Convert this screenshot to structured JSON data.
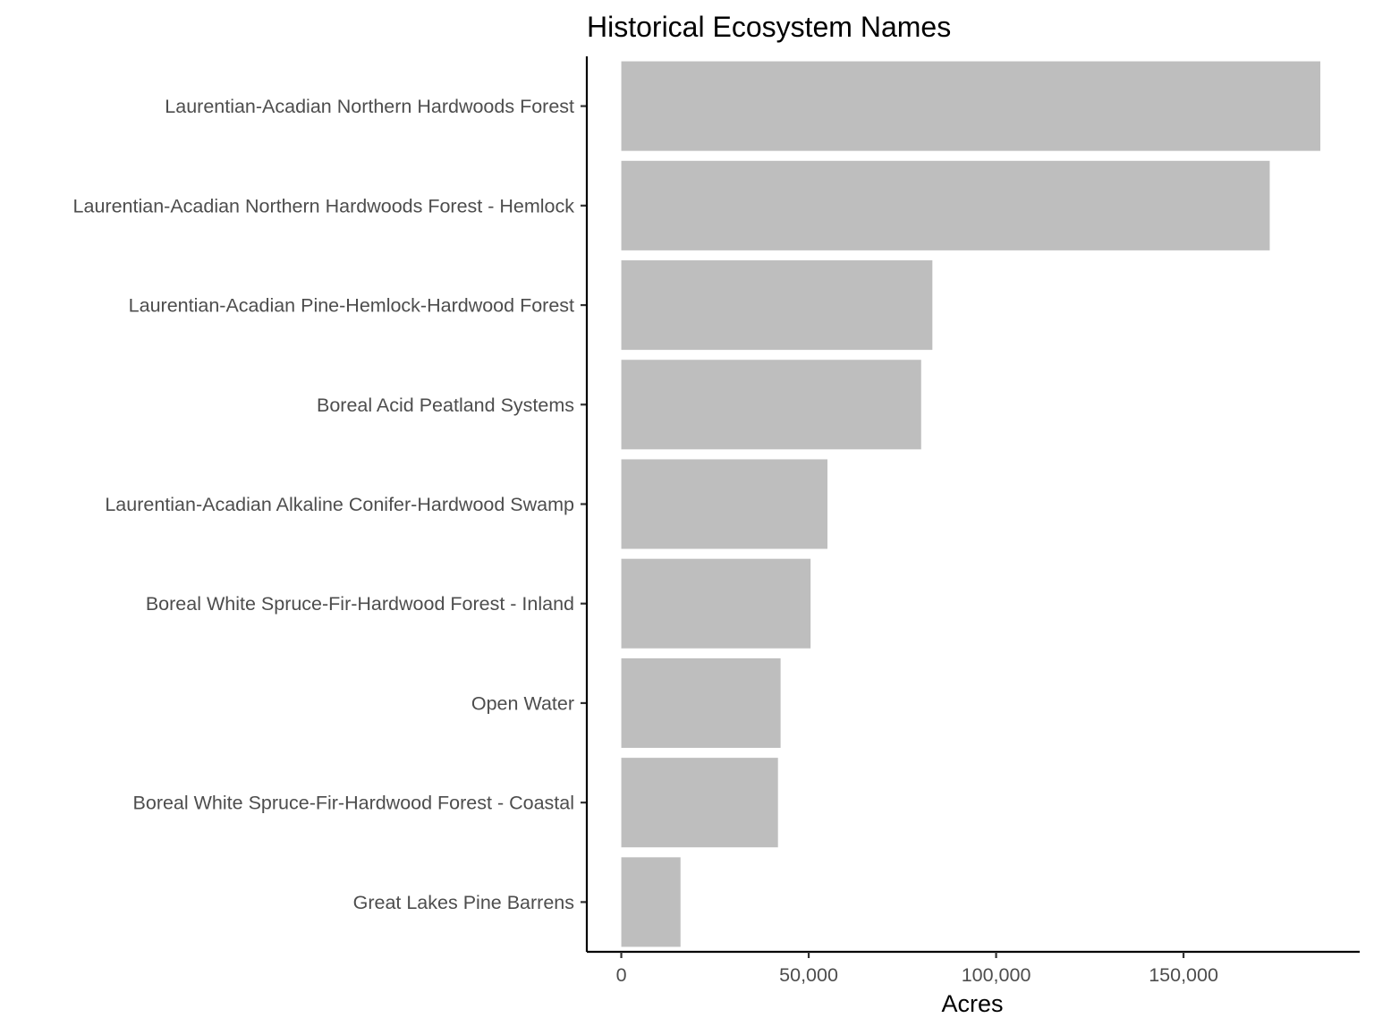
{
  "chart_data": {
    "type": "bar",
    "orientation": "horizontal",
    "title": "Historical Ecosystem Names",
    "xlabel": "Acres",
    "ylabel": "",
    "categories": [
      "Laurentian-Acadian Northern Hardwoods Forest",
      "Laurentian-Acadian Northern Hardwoods Forest - Hemlock",
      "Laurentian-Acadian Pine-Hemlock-Hardwood Forest",
      "Boreal Acid Peatland Systems",
      "Laurentian-Acadian Alkaline Conifer-Hardwood Swamp",
      "Boreal White Spruce-Fir-Hardwood Forest - Inland",
      "Open Water",
      "Boreal White Spruce-Fir-Hardwood Forest - Coastal",
      "Great Lakes Pine Barrens"
    ],
    "values": [
      186500,
      173000,
      83000,
      80000,
      55000,
      50500,
      42500,
      41800,
      15800
    ],
    "xlim": [
      -9200,
      197000
    ],
    "x_ticks": [
      0,
      50000,
      100000,
      150000
    ],
    "x_tick_labels": [
      "0",
      "50,000",
      "100,000",
      "150,000"
    ],
    "bar_color": "#bebebe",
    "grid": false,
    "legend": "none"
  }
}
